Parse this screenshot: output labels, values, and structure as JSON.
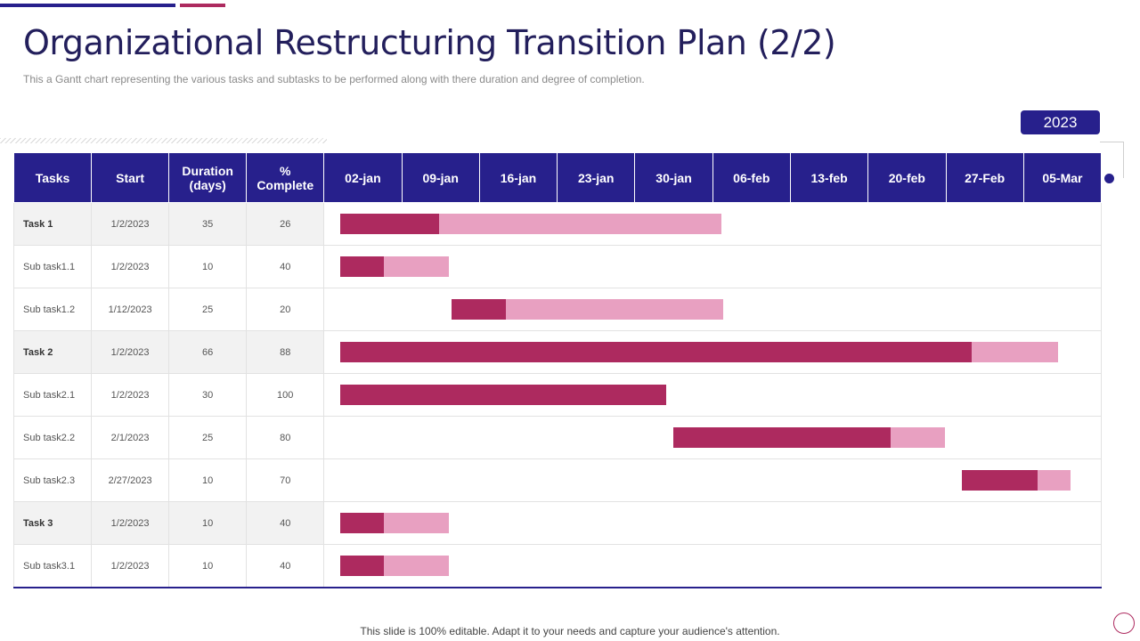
{
  "title": "Organizational Restructuring Transition Plan (2/2)",
  "subtitle": "This a Gantt chart representing the various tasks and subtasks to be performed along with there duration and degree of completion.",
  "year": "2023",
  "footer": "This slide is 100% editable. Adapt it to your needs and capture your audience's attention.",
  "colors": {
    "accent_primary": "#27208c",
    "accent_secondary": "#ad2a5f",
    "bar_completed": "#ad2a5f",
    "bar_remaining": "#e8a0c1"
  },
  "chart_data": {
    "type": "gantt",
    "columns": [
      "Tasks",
      "Start",
      "Duration\n(days)",
      "%\nComplete"
    ],
    "timeline_labels": [
      "02-jan",
      "09-jan",
      "16-jan",
      "23-jan",
      "30-jan",
      "06-feb",
      "13-feb",
      "20-feb",
      "27-Feb",
      "05-Mar"
    ],
    "timeline_start": "2023-01-02",
    "timeline_step_days": 7,
    "rows": [
      {
        "name": "Task 1",
        "level": "task",
        "start": "1/2/2023",
        "duration": 35,
        "complete": 26
      },
      {
        "name": "Sub task1.1",
        "level": "subtask",
        "start": "1/2/2023",
        "duration": 10,
        "complete": 40
      },
      {
        "name": "Sub task1.2",
        "level": "subtask",
        "start": "1/12/2023",
        "duration": 25,
        "complete": 20
      },
      {
        "name": "Task 2",
        "level": "task",
        "start": "1/2/2023",
        "duration": 66,
        "complete": 88
      },
      {
        "name": "Sub task2.1",
        "level": "subtask",
        "start": "1/2/2023",
        "duration": 30,
        "complete": 100
      },
      {
        "name": "Sub task2.2",
        "level": "subtask",
        "start": "2/1/2023",
        "duration": 25,
        "complete": 80
      },
      {
        "name": "Sub task2.3",
        "level": "subtask",
        "start": "2/27/2023",
        "duration": 10,
        "complete": 70
      },
      {
        "name": "Task 3",
        "level": "task",
        "start": "1/2/2023",
        "duration": 10,
        "complete": 40
      },
      {
        "name": "Sub task3.1",
        "level": "subtask",
        "start": "1/2/2023",
        "duration": 10,
        "complete": 40
      }
    ]
  }
}
